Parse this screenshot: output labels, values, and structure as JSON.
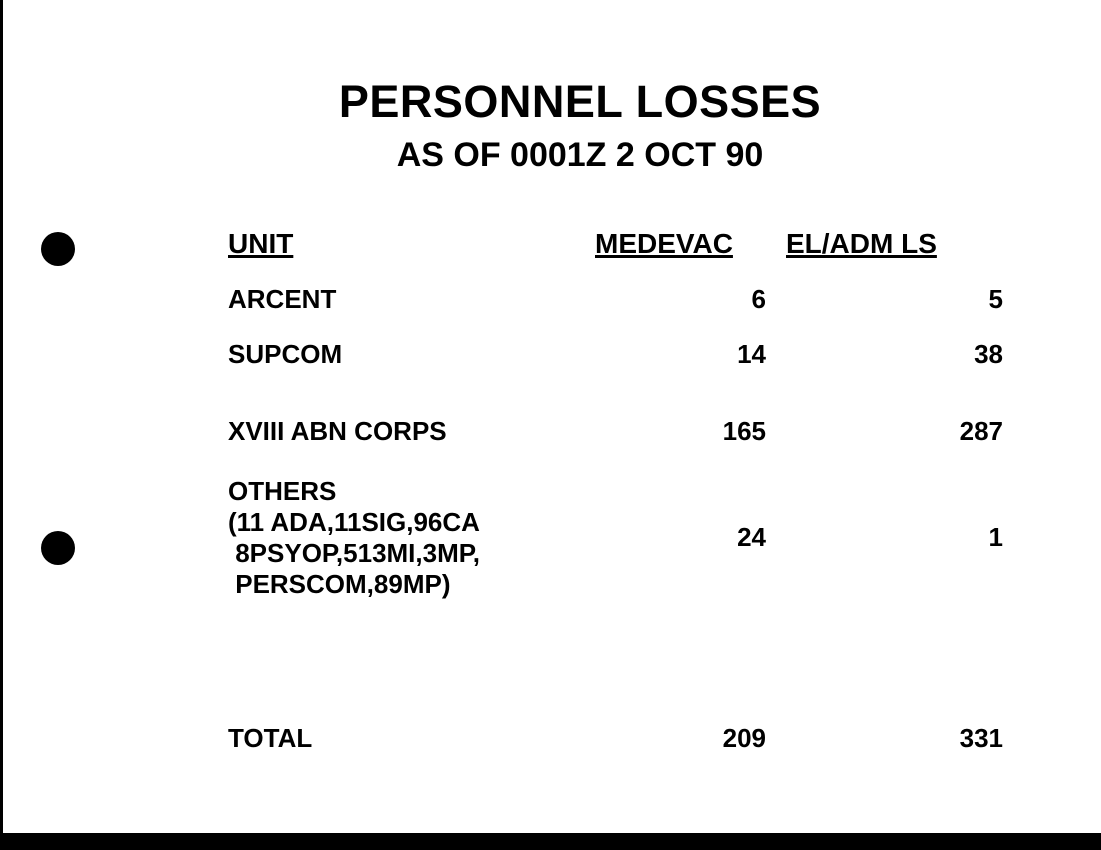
{
  "title": "PERSONNEL LOSSES",
  "subtitle": "AS OF 0001Z 2 OCT 90",
  "table": {
    "headers": [
      "UNIT",
      "MEDEVAC",
      "EL/ADM LS"
    ],
    "rows": [
      {
        "unit": "ARCENT",
        "medevac": "6",
        "el_adm_ls": "5"
      },
      {
        "unit": "SUPCOM",
        "medevac": "14",
        "el_adm_ls": "38"
      },
      {
        "unit": "XVIII ABN CORPS",
        "medevac": "165",
        "el_adm_ls": "287"
      },
      {
        "unit_lines": [
          "OTHERS",
          "(11 ADA,11SIG,96CA",
          " 8PSYOP,513MI,3MP,",
          " PERSCOM,89MP)"
        ],
        "medevac": "24",
        "el_adm_ls": "1"
      },
      {
        "unit": "TOTAL",
        "medevac": "209",
        "el_adm_ls": "331"
      }
    ]
  }
}
